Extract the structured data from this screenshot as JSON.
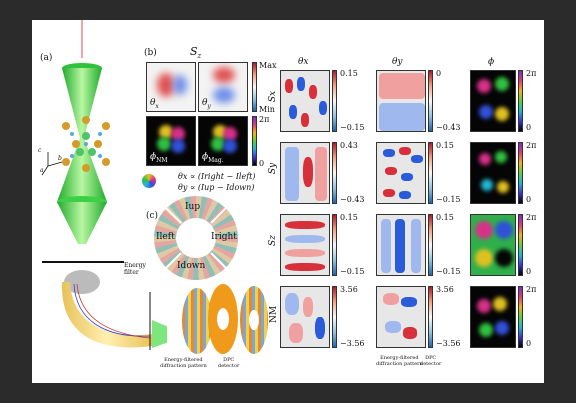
{
  "panels": {
    "a": "(a)",
    "b": "(b)",
    "c": "(c)"
  },
  "axes": {
    "c": "c",
    "b": "b",
    "a": "a"
  },
  "panel_b": {
    "title": "S",
    "title_sub": "z",
    "labels": {
      "theta_x": "θ",
      "theta_x_sub": "x",
      "theta_y": "θ",
      "theta_y_sub": "y",
      "phi_nm": "ϕ",
      "phi_nm_sub": "NM",
      "phi_mag": "ϕ",
      "phi_mag_sub": "Mag."
    },
    "colorbar_max": "Max",
    "colorbar_min": "Min",
    "phase_max": "2π",
    "phase_min": "0",
    "formula_x": "θx ∝ (Iright − Ileft)",
    "formula_y": "θy ∝ (Iup − Idown)"
  },
  "detector": {
    "up": "Iup",
    "left": "Ileft",
    "right": "Iright",
    "down": "Idown"
  },
  "captions": {
    "energy_filter": "Energy\nfilter",
    "efdp": "Energy-filtered\ndiffraction pattern",
    "dpc": "DPC\ndetector",
    "efdp2": "Energy-filtered\ndiffraction pattern",
    "dpc2": "DPC\ndetector"
  },
  "grid": {
    "col_headers": [
      "θx",
      "θy",
      "ϕ"
    ],
    "row_labels": [
      "Sx",
      "Sy",
      "Sz",
      "NM"
    ],
    "ticks": [
      {
        "tx_top": "0.15",
        "tx_bot": "−0.15",
        "ty_top": "0",
        "ty_bot": "−0.43"
      },
      {
        "tx_top": "0.43",
        "tx_bot": "−0.43",
        "ty_top": "0.15",
        "ty_bot": "−0.15"
      },
      {
        "tx_top": "0.15",
        "tx_bot": "−0.15",
        "ty_top": "0.15",
        "ty_bot": "−0.15"
      },
      {
        "tx_top": "3.56",
        "tx_bot": "−3.56",
        "ty_top": "3.56",
        "ty_bot": "−3.56"
      }
    ],
    "phase_top": "2π",
    "phase_bot": "0"
  }
}
